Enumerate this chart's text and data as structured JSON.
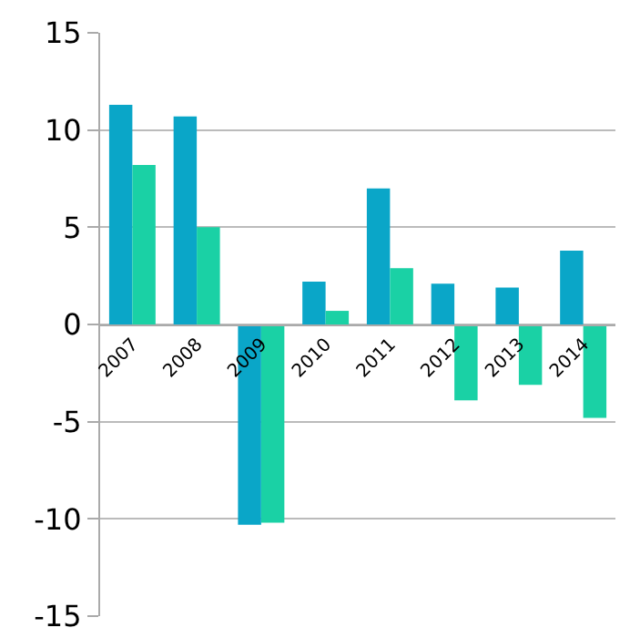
{
  "chart_data": {
    "type": "bar",
    "categories": [
      "2007",
      "2008",
      "2009",
      "2010",
      "2011",
      "2012",
      "2013",
      "2014"
    ],
    "series": [
      {
        "color": "#0aa6c8",
        "values": [
          11.3,
          10.7,
          -10.3,
          2.2,
          7.0,
          2.1,
          1.9,
          3.8
        ]
      },
      {
        "color": "#1ad1a5",
        "values": [
          8.2,
          5.0,
          -10.2,
          0.7,
          2.9,
          -3.9,
          -3.1,
          -4.8
        ]
      }
    ],
    "ylim": [
      -15,
      15
    ],
    "yticks": [
      -15,
      -10,
      -5,
      0,
      5,
      10,
      15
    ],
    "grid": "y"
  }
}
